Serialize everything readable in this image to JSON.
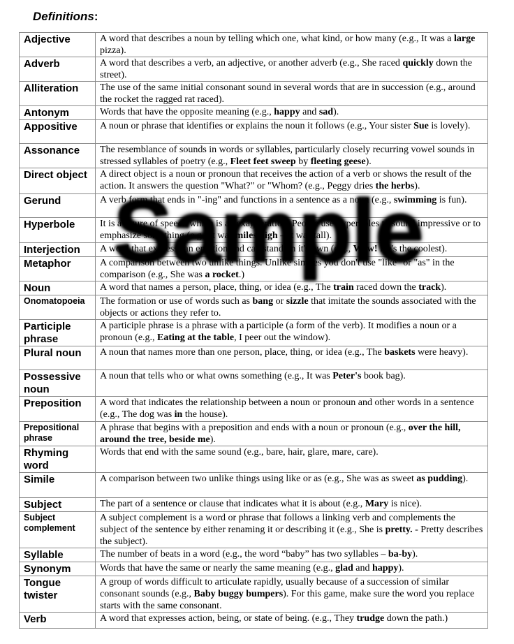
{
  "title": "Definitions",
  "title_suffix": ":",
  "watermark": "Sample",
  "rows": [
    {
      "term": "Adjective",
      "def": [
        [
          "A word that describes a noun by telling which one, what kind, or how many (e.g., It was a ",
          0
        ],
        [
          "large",
          1
        ],
        [
          " pizza).",
          0
        ]
      ]
    },
    {
      "term": "Adverb",
      "def": [
        [
          "A word that describes a verb, an adjective, or another adverb (e.g., She raced ",
          0
        ],
        [
          "quickly",
          1
        ],
        [
          " down the street).",
          0
        ]
      ]
    },
    {
      "term": "Alliteration",
      "def": [
        [
          "The use of the same initial consonant sound in several words that are in succession (e.g., around the rocket the ragged rat raced).",
          0
        ]
      ]
    },
    {
      "term": "Antonym",
      "def": [
        [
          "Words that have the opposite meaning (e.g., ",
          0
        ],
        [
          "happy",
          1
        ],
        [
          " and ",
          0
        ],
        [
          "sad",
          1
        ],
        [
          ").",
          0
        ]
      ]
    },
    {
      "term": "Appositive",
      "def": [
        [
          "A noun or phrase that identifies or explains the noun it follows (e.g., Your sister ",
          0
        ],
        [
          "Sue",
          1
        ],
        [
          " is lovely).",
          0
        ]
      ]
    },
    {
      "term": "Assonance",
      "def": [
        [
          "The resemblance of sounds in words or syllables, particularly closely recurring vowel sounds in stressed syllables of poetry (e.g., ",
          0
        ],
        [
          "Fleet feet sweep",
          1
        ],
        [
          " by ",
          0
        ],
        [
          "fleeting geese",
          1
        ],
        [
          ").",
          0
        ]
      ]
    },
    {
      "term": "Direct object",
      "def": [
        [
          "A direct object is a noun or pronoun that receives the action of a verb or shows the result of the action. It answers the question \"What?\" or \"Whom? (e.g., Peggy dries ",
          0
        ],
        [
          "the herbs",
          1
        ],
        [
          ").",
          0
        ]
      ]
    },
    {
      "term": "Gerund",
      "def": [
        [
          "A verb form that ends in \"-ing\" and functions in a sentence as a noun (e.g., ",
          0
        ],
        [
          "swimming",
          1
        ],
        [
          " is fun).",
          0
        ]
      ]
    },
    {
      "term": "Hyperbole",
      "def": [
        [
          "It is a figure of speech which is an exaggeration. People use hyperboles to sound impressive or to emphasize something (e.g., It was ",
          0
        ],
        [
          "miles high",
          1
        ],
        [
          " – It was tall).",
          0
        ]
      ]
    },
    {
      "term": "Interjection",
      "def": [
        [
          "A word that expresss an emotion and can stand on it's own (e.g., ",
          0
        ],
        [
          "Wow!",
          1
        ],
        [
          " He's the coolest).",
          0
        ]
      ]
    },
    {
      "term": "Metaphor",
      "def": [
        [
          "A comparison between two unlike things. Unlike similes you don't use \"like\" or \"as\" in the comparison (e.g., She was ",
          0
        ],
        [
          "a rocket",
          1
        ],
        [
          ".)",
          0
        ]
      ]
    },
    {
      "term": "Noun",
      "def": [
        [
          "A word that names a person, place, thing, or idea (e.g., The ",
          0
        ],
        [
          "train",
          1
        ],
        [
          " raced down the ",
          0
        ],
        [
          "track",
          1
        ],
        [
          ").",
          0
        ]
      ]
    },
    {
      "term": "Onomatopoeia",
      "small": true,
      "def": [
        [
          "The formation or use of words such as ",
          0
        ],
        [
          "bang",
          1
        ],
        [
          " or ",
          0
        ],
        [
          "sizzle",
          1
        ],
        [
          " that imitate the sounds associated with the objects or actions they refer to.",
          0
        ]
      ]
    },
    {
      "term": "Participle phrase",
      "def": [
        [
          "A participle phrase is a phrase with a participle (a form of the verb). It modifies a noun or a pronoun (e.g., ",
          0
        ],
        [
          "Eating at the table",
          1
        ],
        [
          ", I peer out the window).",
          0
        ]
      ]
    },
    {
      "term": "Plural noun",
      "def": [
        [
          "A noun that names more than one person, place, thing, or idea (e.g., The ",
          0
        ],
        [
          "baskets",
          1
        ],
        [
          " were heavy).",
          0
        ]
      ]
    },
    {
      "term": "Possessive noun",
      "def": [
        [
          "A noun that tells who or what owns something (e.g., It was ",
          0
        ],
        [
          "Peter's",
          1
        ],
        [
          " book bag).",
          0
        ]
      ]
    },
    {
      "term": "Preposition",
      "def": [
        [
          "A word that indicates the relationship between a noun or pronoun and other words in a sentence (e.g., The dog was ",
          0
        ],
        [
          "in",
          1
        ],
        [
          " the house).",
          0
        ]
      ]
    },
    {
      "term": "Prepositional phrase",
      "small": true,
      "def": [
        [
          "A phrase that begins with a preposition and ends with a noun or pronoun (e.g., ",
          0
        ],
        [
          "over the hill, around the tree, beside me",
          1
        ],
        [
          ").",
          0
        ]
      ]
    },
    {
      "term": "Rhyming word",
      "def": [
        [
          "Words that end with the same sound (e.g., bare, hair, glare, mare, care).",
          0
        ]
      ]
    },
    {
      "term": "Simile",
      "def": [
        [
          "A comparison between two unlike things using like or as (e.g., She was as sweet ",
          0
        ],
        [
          "as pudding",
          1
        ],
        [
          ").",
          0
        ]
      ]
    },
    {
      "term": "Subject",
      "def": [
        [
          "The part of a sentence or clause that indicates what it is about (e.g., ",
          0
        ],
        [
          "Mary",
          1
        ],
        [
          " is nice).",
          0
        ]
      ]
    },
    {
      "term": "Subject complement",
      "small": true,
      "def": [
        [
          "A subject complement is a word or phrase that follows a linking verb and complements the subject of the sentence by either renaming it or describing it (e.g., She is ",
          0
        ],
        [
          "pretty.",
          1
        ],
        [
          " - Pretty describes the subject).",
          0
        ]
      ]
    },
    {
      "term": "Syllable",
      "def": [
        [
          "The number of beats in a word (e.g., the word “baby” has two syllables – ",
          0
        ],
        [
          "ba-by",
          1
        ],
        [
          ").",
          0
        ]
      ]
    },
    {
      "term": "Synonym",
      "def": [
        [
          "Words that have the same or nearly the same meaning (e.g., ",
          0
        ],
        [
          "glad",
          1
        ],
        [
          " and ",
          0
        ],
        [
          "happy",
          1
        ],
        [
          ").",
          0
        ]
      ]
    },
    {
      "term": "Tongue twister",
      "def": [
        [
          "A group of words difficult to articulate rapidly, usually because of a succession of similar consonant sounds (e.g., ",
          0
        ],
        [
          "Baby buggy bumpers",
          1
        ],
        [
          "). For this game, make sure the word you replace starts with the same consonant.",
          0
        ]
      ]
    },
    {
      "term": "Verb",
      "def": [
        [
          "A word that expresses action, being, or state of being. (e.g., They ",
          0
        ],
        [
          "trudge",
          1
        ],
        [
          " down the path.)",
          0
        ]
      ]
    }
  ]
}
